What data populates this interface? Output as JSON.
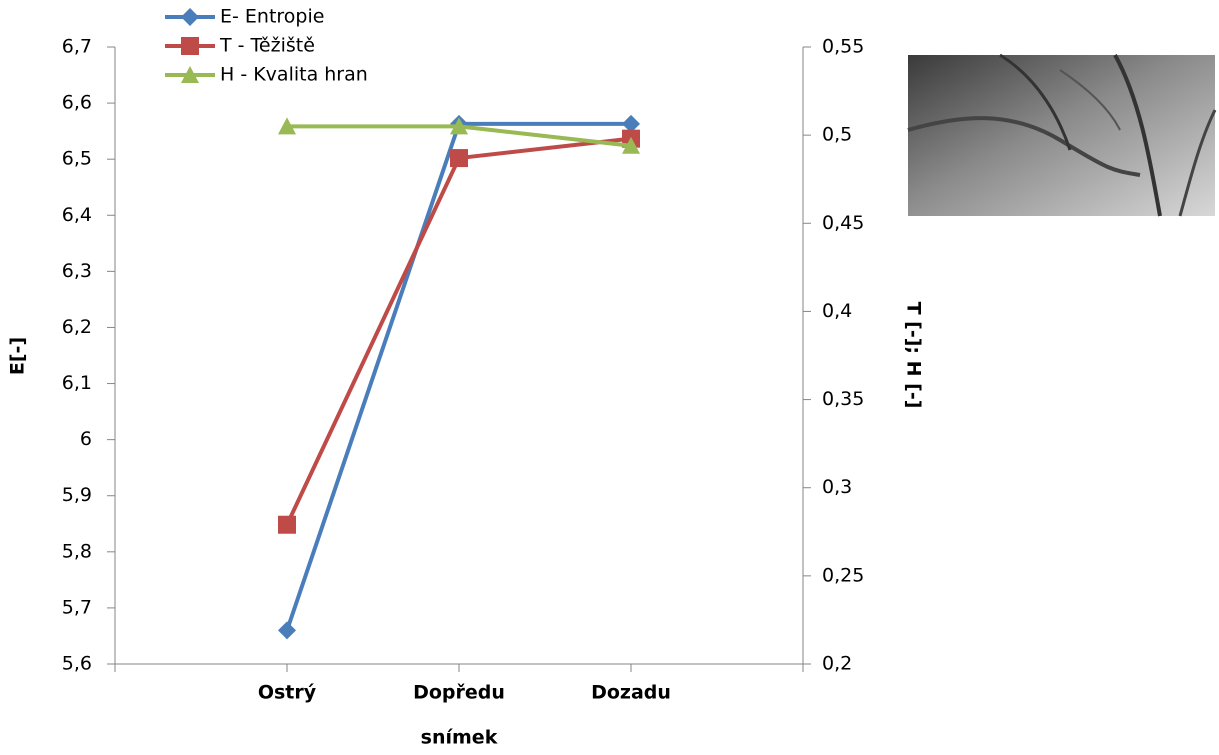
{
  "chart_data": {
    "type": "line",
    "x_label": "snímek",
    "y_label": "E[-]",
    "y2_label": "T [-]; H [-]",
    "categories": [
      "Ostrý",
      "Dopředu",
      "Dozadu"
    ],
    "series": [
      {
        "name": "E- Entropie",
        "color": "#4a7ebb",
        "marker": "diamond",
        "values": [
          5.66,
          6.563,
          6.563
        ]
      },
      {
        "name": "T - Těžiště",
        "color": "#be4b48",
        "marker": "square",
        "axis": "y2",
        "values": [
          0.279,
          0.487,
          0.498
        ]
      },
      {
        "name": "H - Kvalita hran",
        "color": "#98b954",
        "marker": "triangle",
        "axis": "y2",
        "values": [
          0.505,
          0.505,
          0.494
        ]
      }
    ],
    "ylim": [
      5.6,
      6.7
    ],
    "yticks": [
      {
        "value": 5.6,
        "label": "5,6"
      },
      {
        "value": 5.7,
        "label": "5,7"
      },
      {
        "value": 5.8,
        "label": "5,8"
      },
      {
        "value": 5.9,
        "label": "5,9"
      },
      6,
      {
        "value": 6.1,
        "label": "6,1"
      },
      {
        "value": 6.2,
        "label": "6,2"
      },
      {
        "value": 6.3,
        "label": "6,3"
      },
      {
        "value": 6.4,
        "label": "6,4"
      },
      {
        "value": 6.5,
        "label": "6,5"
      },
      {
        "value": 6.6,
        "label": "6,6"
      },
      {
        "value": 6.7,
        "label": "6,7"
      }
    ],
    "y2lim": [
      0.2,
      0.55
    ],
    "y2ticks": [
      {
        "value": 0.2,
        "label": "0,2"
      },
      {
        "value": 0.25,
        "label": "0,25"
      },
      {
        "value": 0.3,
        "label": "0,3"
      },
      {
        "value": 0.35,
        "label": "0,35"
      },
      {
        "value": 0.4,
        "label": "0,4"
      },
      {
        "value": 0.45,
        "label": "0,45"
      },
      {
        "value": 0.5,
        "label": "0,5"
      },
      {
        "value": 0.55,
        "label": "0,55"
      }
    ],
    "legend": "top-left"
  }
}
